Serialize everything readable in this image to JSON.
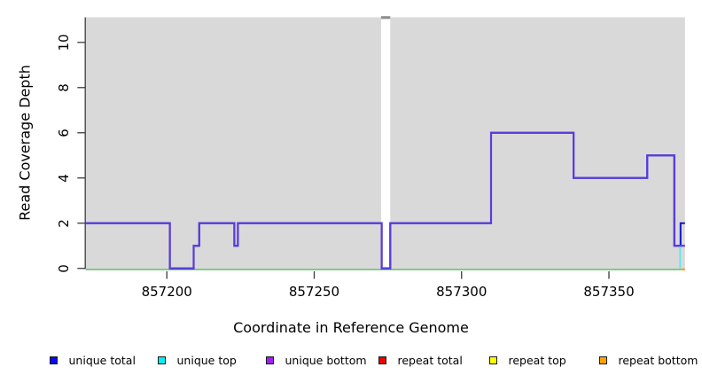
{
  "chart_data": {
    "type": "line",
    "subtype": "step-coverage",
    "xlabel": "Coordinate in Reference Genome",
    "ylabel": "Read Coverage Depth",
    "x_ticks": [
      857200,
      857250,
      857300,
      857350
    ],
    "y_ticks": [
      0,
      2,
      4,
      6,
      8,
      10
    ],
    "xlim": [
      857172.5,
      857375.8
    ],
    "ylim": [
      -0.09,
      11.11
    ],
    "plot_bg": "#d9d9d9",
    "axis_color": "#3a3a3a",
    "gap_region": {
      "from": 857272.7,
      "to": 857275.8,
      "cap_color": "#8f8f8f"
    },
    "baseline": {
      "green": {
        "color": "#5bc466",
        "from": 857172.5,
        "to": 857374.3,
        "y": 0
      },
      "orange": {
        "color": "#ff9d1c",
        "from": 857374.3,
        "to": 857375.8,
        "y": 0
      }
    },
    "series": [
      {
        "name": "unique total",
        "color": "#1313d2",
        "width": 2,
        "steps": [
          [
            857172.5,
            2
          ],
          [
            857201,
            0
          ],
          [
            857209.1,
            1
          ],
          [
            857211,
            2
          ],
          [
            857222.9,
            1
          ],
          [
            857224.1,
            2
          ],
          [
            857272.9,
            0
          ],
          [
            857275.8,
            2
          ],
          [
            857310,
            6
          ],
          [
            857338,
            4
          ],
          [
            857363,
            5
          ],
          [
            857372.2,
            1
          ],
          [
            857374.3,
            2
          ]
        ],
        "end": 857375.8
      },
      {
        "name": "unique top",
        "color": "#5fe8ef",
        "width": 1.8,
        "steps": [
          [
            857374.1,
            0
          ],
          [
            857374.15,
            1
          ]
        ],
        "end": 857375.8
      },
      {
        "name": "unique bottom",
        "color": "#5a3bdc",
        "width": 2.2,
        "steps": [
          [
            857172.5,
            2
          ],
          [
            857201,
            0
          ],
          [
            857209.1,
            1
          ],
          [
            857211,
            2
          ],
          [
            857222.9,
            1
          ],
          [
            857224.1,
            2
          ],
          [
            857272.9,
            0
          ],
          [
            857275.8,
            2
          ],
          [
            857310,
            6
          ],
          [
            857338,
            4
          ],
          [
            857363,
            5
          ],
          [
            857372.2,
            1
          ]
        ],
        "end": 857375.8
      }
    ]
  },
  "legend": {
    "items": [
      {
        "label": "unique total",
        "color": "#0a0aee"
      },
      {
        "label": "unique top",
        "color": "#00f0f6"
      },
      {
        "label": "unique bottom",
        "color": "#a020f0"
      },
      {
        "label": "repeat total",
        "color": "#ee0000"
      },
      {
        "label": "repeat top",
        "color": "#ffff00"
      },
      {
        "label": "repeat bottom",
        "color": "#ffa500"
      }
    ]
  }
}
